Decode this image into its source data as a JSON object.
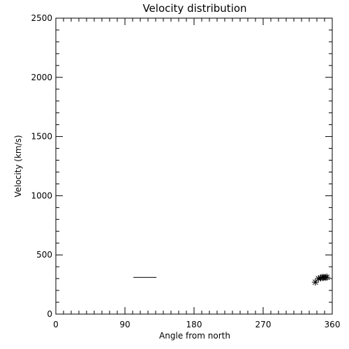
{
  "chart_data": {
    "type": "scatter",
    "title": "Velocity distribution",
    "xlabel": "Angle from north",
    "ylabel": "Velocity (km/s)",
    "xlim": [
      0,
      360
    ],
    "ylim": [
      0,
      2500
    ],
    "xticks": [
      0,
      90,
      180,
      270,
      360
    ],
    "xtick_labels": [
      "0",
      "90",
      "180",
      "270",
      "360"
    ],
    "yticks": [
      0,
      500,
      1000,
      1500,
      2000,
      2500
    ],
    "ytick_labels": [
      "0",
      "500",
      "1000",
      "1500",
      "2000",
      "2500"
    ],
    "minor_x_step": 10,
    "minor_y_step": 100,
    "grid": false,
    "points": [
      {
        "x": 338,
        "y": 270
      },
      {
        "x": 342,
        "y": 300
      },
      {
        "x": 345,
        "y": 305
      },
      {
        "x": 347,
        "y": 310
      },
      {
        "x": 349,
        "y": 310
      },
      {
        "x": 351,
        "y": 310
      },
      {
        "x": 353,
        "y": 312
      }
    ],
    "range_segments": [
      {
        "x_start": 101,
        "x_end": 131,
        "y": 310
      }
    ],
    "color": "#000000"
  }
}
